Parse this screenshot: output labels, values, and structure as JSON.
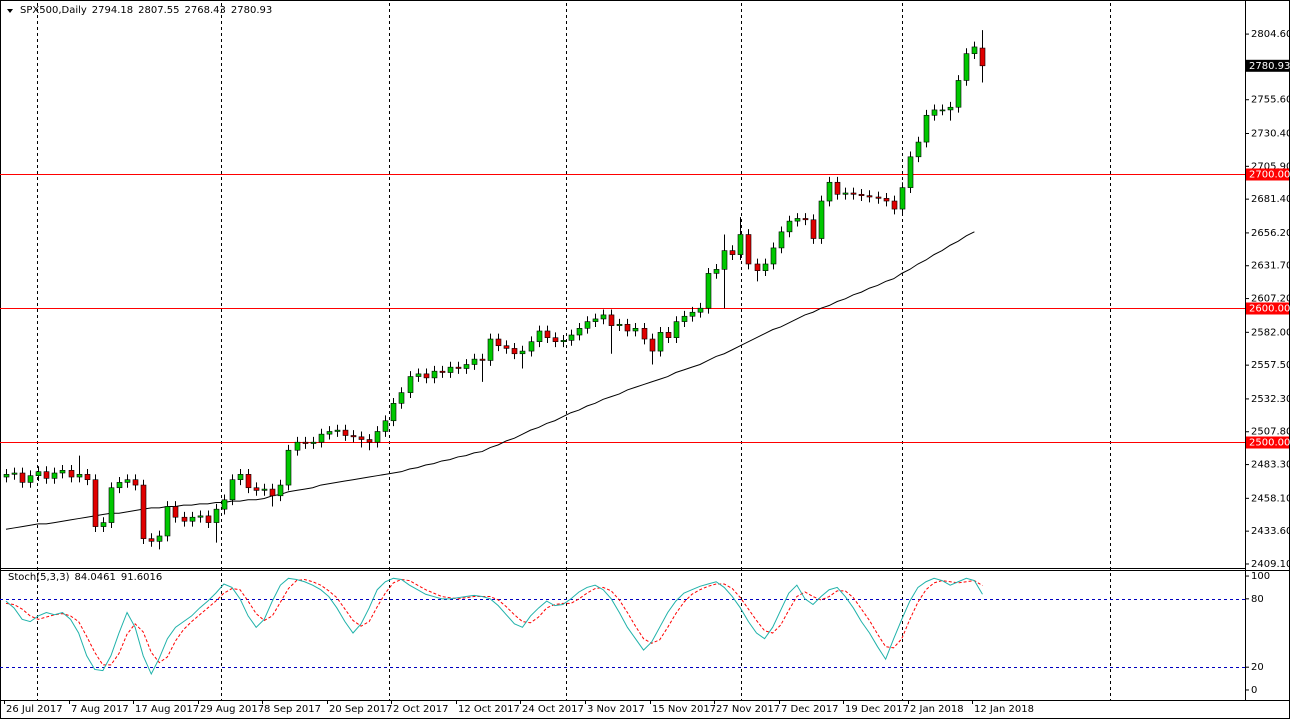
{
  "chart_data": {
    "type": "candlestick",
    "title": "SPX500,Daily",
    "header_values": [
      2794.18,
      2807.55,
      2768.43,
      2780.93
    ],
    "categories": [
      "26 Jul 2017",
      null,
      null,
      null,
      null,
      null,
      null,
      null,
      "7 Aug 2017",
      null,
      null,
      null,
      null,
      null,
      null,
      null,
      "17 Aug 2017",
      null,
      null,
      null,
      null,
      null,
      null,
      null,
      "29 Aug 2017",
      null,
      null,
      null,
      null,
      null,
      null,
      null,
      "8 Sep 2017",
      null,
      null,
      null,
      null,
      null,
      null,
      null,
      "20 Sep 2017",
      null,
      null,
      null,
      null,
      null,
      null,
      null,
      "2 Oct 2017",
      null,
      null,
      null,
      null,
      null,
      null,
      null,
      "12 Oct 2017",
      null,
      null,
      null,
      null,
      null,
      null,
      null,
      "24 Oct 2017",
      null,
      null,
      null,
      null,
      null,
      null,
      null,
      "3 Nov 2017",
      null,
      null,
      null,
      null,
      null,
      null,
      null,
      "15 Nov 2017",
      null,
      null,
      null,
      null,
      null,
      null,
      null,
      "27 Nov 2017",
      null,
      null,
      null,
      null,
      null,
      null,
      null,
      "7 Dec 2017",
      null,
      null,
      null,
      null,
      null,
      null,
      null,
      "19 Dec 2017",
      null,
      null,
      null,
      null,
      null,
      null,
      null,
      "2 Jan 2018",
      null,
      null,
      null,
      null,
      null,
      null,
      null,
      "12 Jan 2018",
      null
    ],
    "candles": {
      "up_color": "#00c800",
      "down_color": "#e00000",
      "open": [
        2474,
        2476,
        2477,
        2470,
        2475,
        2478,
        2473,
        2477,
        2479,
        2474,
        2476,
        2472,
        2437,
        2440,
        2466,
        2470,
        2472,
        2468,
        2428,
        2426,
        2430,
        2452,
        2444,
        2441,
        2444,
        2445,
        2440,
        2450,
        2457,
        2472,
        2476,
        2466,
        2464,
        2465,
        2460,
        2468,
        2494,
        2500,
        2499,
        2500,
        2506,
        2508,
        2509,
        2505,
        2504,
        2502,
        2500,
        2508,
        2516,
        2529,
        2537,
        2549,
        2551,
        2548,
        2553,
        2552,
        2556,
        2555,
        2558,
        2562,
        2561,
        2577,
        2572,
        2570,
        2566,
        2568,
        2575,
        2583,
        2578,
        2575,
        2576,
        2580,
        2585,
        2590,
        2592,
        2595,
        2587,
        2588,
        2583,
        2585,
        2577,
        2568,
        2582,
        2578,
        2590,
        2594,
        2597,
        2600,
        2626,
        2629,
        2643,
        2640,
        2655,
        2633,
        2628,
        2633,
        2645,
        2657,
        2665,
        2667,
        2666,
        2652,
        2680,
        2694,
        2685,
        2686,
        2685,
        2684,
        2683,
        2682,
        2680,
        2674,
        2690,
        2713,
        2724,
        2744,
        2748,
        2748,
        2750,
        2770,
        2790,
        2794.18
      ],
      "high": [
        2480,
        2481,
        2481,
        2479,
        2482,
        2482,
        2481,
        2483,
        2483,
        2490,
        2480,
        2476,
        2444,
        2470,
        2474,
        2476,
        2476,
        2472,
        2432,
        2434,
        2456,
        2456,
        2448,
        2448,
        2449,
        2449,
        2454,
        2461,
        2476,
        2480,
        2480,
        2470,
        2469,
        2469,
        2472,
        2498,
        2504,
        2504,
        2504,
        2510,
        2512,
        2513,
        2513,
        2509,
        2508,
        2506,
        2512,
        2520,
        2533,
        2541,
        2553,
        2555,
        2555,
        2557,
        2557,
        2560,
        2560,
        2562,
        2566,
        2566,
        2581,
        2581,
        2576,
        2574,
        2572,
        2579,
        2587,
        2587,
        2582,
        2580,
        2584,
        2589,
        2594,
        2596,
        2599,
        2599,
        2592,
        2592,
        2589,
        2589,
        2581,
        2586,
        2586,
        2594,
        2598,
        2601,
        2604,
        2630,
        2633,
        2655,
        2647,
        2668,
        2659,
        2637,
        2637,
        2649,
        2661,
        2669,
        2671,
        2671,
        2670,
        2684,
        2698,
        2698,
        2690,
        2690,
        2689,
        2688,
        2687,
        2686,
        2684,
        2694,
        2717,
        2728,
        2748,
        2752,
        2752,
        2754,
        2774,
        2794,
        2799,
        2807.55
      ],
      "low": [
        2470,
        2472,
        2466,
        2466,
        2471,
        2469,
        2469,
        2473,
        2470,
        2470,
        2468,
        2433,
        2433,
        2436,
        2462,
        2466,
        2464,
        2424,
        2422,
        2420,
        2426,
        2440,
        2437,
        2437,
        2440,
        2436,
        2425,
        2446,
        2453,
        2468,
        2462,
        2460,
        2460,
        2452,
        2456,
        2464,
        2490,
        2495,
        2495,
        2496,
        2502,
        2504,
        2501,
        2500,
        2496,
        2494,
        2496,
        2504,
        2512,
        2525,
        2533,
        2545,
        2544,
        2544,
        2548,
        2548,
        2551,
        2551,
        2554,
        2545,
        2557,
        2568,
        2566,
        2562,
        2555,
        2564,
        2571,
        2574,
        2571,
        2571,
        2572,
        2576,
        2581,
        2586,
        2588,
        2566,
        2583,
        2579,
        2579,
        2573,
        2558,
        2564,
        2574,
        2574,
        2586,
        2590,
        2593,
        2596,
        2622,
        2600,
        2636,
        2636,
        2629,
        2620,
        2624,
        2629,
        2641,
        2653,
        2661,
        2662,
        2648,
        2648,
        2676,
        2681,
        2681,
        2681,
        2680,
        2679,
        2678,
        2676,
        2670,
        2670,
        2686,
        2709,
        2720,
        2740,
        2744,
        2740,
        2746,
        2766,
        2786,
        2768.43
      ],
      "close": [
        2476,
        2477,
        2470,
        2475,
        2478,
        2473,
        2477,
        2479,
        2474,
        2476,
        2472,
        2437,
        2440,
        2466,
        2470,
        2472,
        2468,
        2428,
        2426,
        2430,
        2452,
        2444,
        2441,
        2444,
        2445,
        2440,
        2450,
        2457,
        2472,
        2476,
        2466,
        2464,
        2465,
        2460,
        2468,
        2494,
        2500,
        2499,
        2500,
        2506,
        2508,
        2509,
        2505,
        2504,
        2502,
        2500,
        2508,
        2516,
        2529,
        2537,
        2549,
        2551,
        2548,
        2553,
        2552,
        2556,
        2555,
        2558,
        2562,
        2561,
        2577,
        2572,
        2570,
        2566,
        2568,
        2575,
        2583,
        2578,
        2575,
        2576,
        2580,
        2585,
        2590,
        2592,
        2595,
        2587,
        2588,
        2583,
        2585,
        2577,
        2568,
        2582,
        2578,
        2590,
        2594,
        2597,
        2600,
        2626,
        2629,
        2643,
        2640,
        2655,
        2633,
        2628,
        2633,
        2645,
        2657,
        2665,
        2667,
        2666,
        2652,
        2680,
        2694,
        2685,
        2686,
        2685,
        2684,
        2683,
        2682,
        2680,
        2674,
        2690,
        2713,
        2724,
        2744,
        2748,
        2748,
        2750,
        2770,
        2790,
        2795,
        2780.93
      ]
    },
    "ma": {
      "color": "#000000",
      "values": [
        2435,
        2436,
        2437,
        2438,
        2439,
        2439,
        2440,
        2441,
        2442,
        2443,
        2444,
        2445,
        2446,
        2447,
        2447,
        2448,
        2449,
        2450,
        2451,
        2451,
        2452,
        2452,
        2453,
        2453,
        2454,
        2454,
        2455,
        2455,
        2456,
        2456,
        2457,
        2457,
        2458,
        2460,
        2461,
        2463,
        2464,
        2465,
        2466,
        2468,
        2469,
        2470,
        2471,
        2472,
        2473,
        2474,
        2475,
        2476,
        2477,
        2478,
        2480,
        2481,
        2483,
        2484,
        2486,
        2487,
        2489,
        2490,
        2492,
        2493,
        2496,
        2498,
        2501,
        2503,
        2506,
        2509,
        2511,
        2514,
        2516,
        2519,
        2522,
        2524,
        2527,
        2529,
        2532,
        2534,
        2536,
        2539,
        2541,
        2543,
        2545,
        2547,
        2549,
        2552,
        2554,
        2556,
        2558,
        2561,
        2564,
        2566,
        2569,
        2572,
        2575,
        2578,
        2581,
        2584,
        2586,
        2589,
        2592,
        2595,
        2597,
        2600,
        2602,
        2605,
        2607,
        2610,
        2612,
        2615,
        2617,
        2620,
        2622,
        2626,
        2629,
        2633,
        2636,
        2640,
        2643,
        2647,
        2650,
        2654,
        2657,
        null
      ]
    },
    "ylim": [
      2406.1,
      2827.8
    ],
    "yticks": [
      {
        "value": 2804.6,
        "label": "2804.60"
      },
      {
        "value": 2755.6,
        "label": "2755.60"
      },
      {
        "value": 2730.4,
        "label": "2730.40"
      },
      {
        "value": 2705.9,
        "label": "2705.90"
      },
      {
        "value": 2681.4,
        "label": "2681.40"
      },
      {
        "value": 2656.2,
        "label": "2656.20"
      },
      {
        "value": 2631.7,
        "label": "2631.70"
      },
      {
        "value": 2607.2,
        "label": "2607.20"
      },
      {
        "value": 2582,
        "label": "2582.00"
      },
      {
        "value": 2557.5,
        "label": "2557.50"
      },
      {
        "value": 2532.3,
        "label": "2532.30"
      },
      {
        "value": 2507.8,
        "label": "2507.80"
      },
      {
        "value": 2483.3,
        "label": "2483.30"
      },
      {
        "value": 2458.1,
        "label": "2458.10"
      },
      {
        "value": 2433.6,
        "label": "2433.60"
      },
      {
        "value": 2409.1,
        "label": "2409.10"
      }
    ],
    "levels": [
      {
        "value": 2700,
        "label": "2700.00"
      },
      {
        "value": 2600,
        "label": "2600.00"
      },
      {
        "value": 2500,
        "label": "2500.00"
      }
    ],
    "level_color": "#ff0000",
    "stoch": {
      "name": "Stoch(5,3,3)",
      "k_color": "#20b2aa",
      "d_color": "#ff0000",
      "level_color": "#0000c0",
      "ylim": [
        -8.8,
        105.3
      ],
      "yticks": [
        100,
        80,
        20,
        0
      ],
      "levels": [
        80,
        20
      ],
      "k": [
        78,
        72,
        62,
        60,
        65,
        68,
        66,
        68,
        62,
        50,
        30,
        18,
        17,
        30,
        50,
        68,
        55,
        30,
        14,
        28,
        45,
        55,
        60,
        65,
        72,
        78,
        85,
        93,
        90,
        80,
        65,
        55,
        62,
        78,
        92,
        98,
        97,
        95,
        92,
        88,
        82,
        72,
        60,
        50,
        58,
        72,
        88,
        95,
        98,
        97,
        92,
        88,
        84,
        82,
        80,
        80,
        81,
        82,
        83,
        82,
        80,
        74,
        66,
        58,
        55,
        65,
        72,
        78,
        74,
        75,
        80,
        86,
        90,
        92,
        88,
        80,
        68,
        55,
        45,
        35,
        42,
        55,
        68,
        78,
        85,
        88,
        91,
        93,
        95,
        90,
        82,
        72,
        60,
        50,
        45,
        55,
        70,
        85,
        92,
        80,
        75,
        82,
        88,
        90,
        82,
        72,
        60,
        50,
        38,
        27,
        45,
        62,
        78,
        90,
        95,
        98,
        96,
        92,
        95,
        98,
        96,
        84.0461
      ],
      "d": [
        76,
        75,
        71,
        65,
        62,
        64,
        66,
        67,
        65,
        60,
        47,
        33,
        22,
        22,
        32,
        49,
        58,
        51,
        33,
        24,
        29,
        43,
        53,
        60,
        66,
        72,
        78,
        85,
        89,
        88,
        78,
        67,
        61,
        65,
        77,
        89,
        96,
        97,
        95,
        92,
        87,
        81,
        71,
        61,
        56,
        60,
        73,
        85,
        94,
        97,
        96,
        92,
        88,
        85,
        82,
        81,
        80,
        81,
        82,
        82,
        82,
        79,
        73,
        66,
        60,
        59,
        64,
        72,
        75,
        76,
        76,
        80,
        85,
        89,
        90,
        87,
        79,
        68,
        56,
        45,
        41,
        44,
        55,
        67,
        77,
        84,
        88,
        91,
        93,
        93,
        89,
        81,
        71,
        61,
        52,
        50,
        57,
        70,
        82,
        86,
        82,
        79,
        82,
        87,
        87,
        81,
        71,
        61,
        49,
        38,
        37,
        45,
        62,
        77,
        88,
        94,
        96,
        95,
        94,
        95,
        96,
        91.6016
      ]
    }
  }
}
